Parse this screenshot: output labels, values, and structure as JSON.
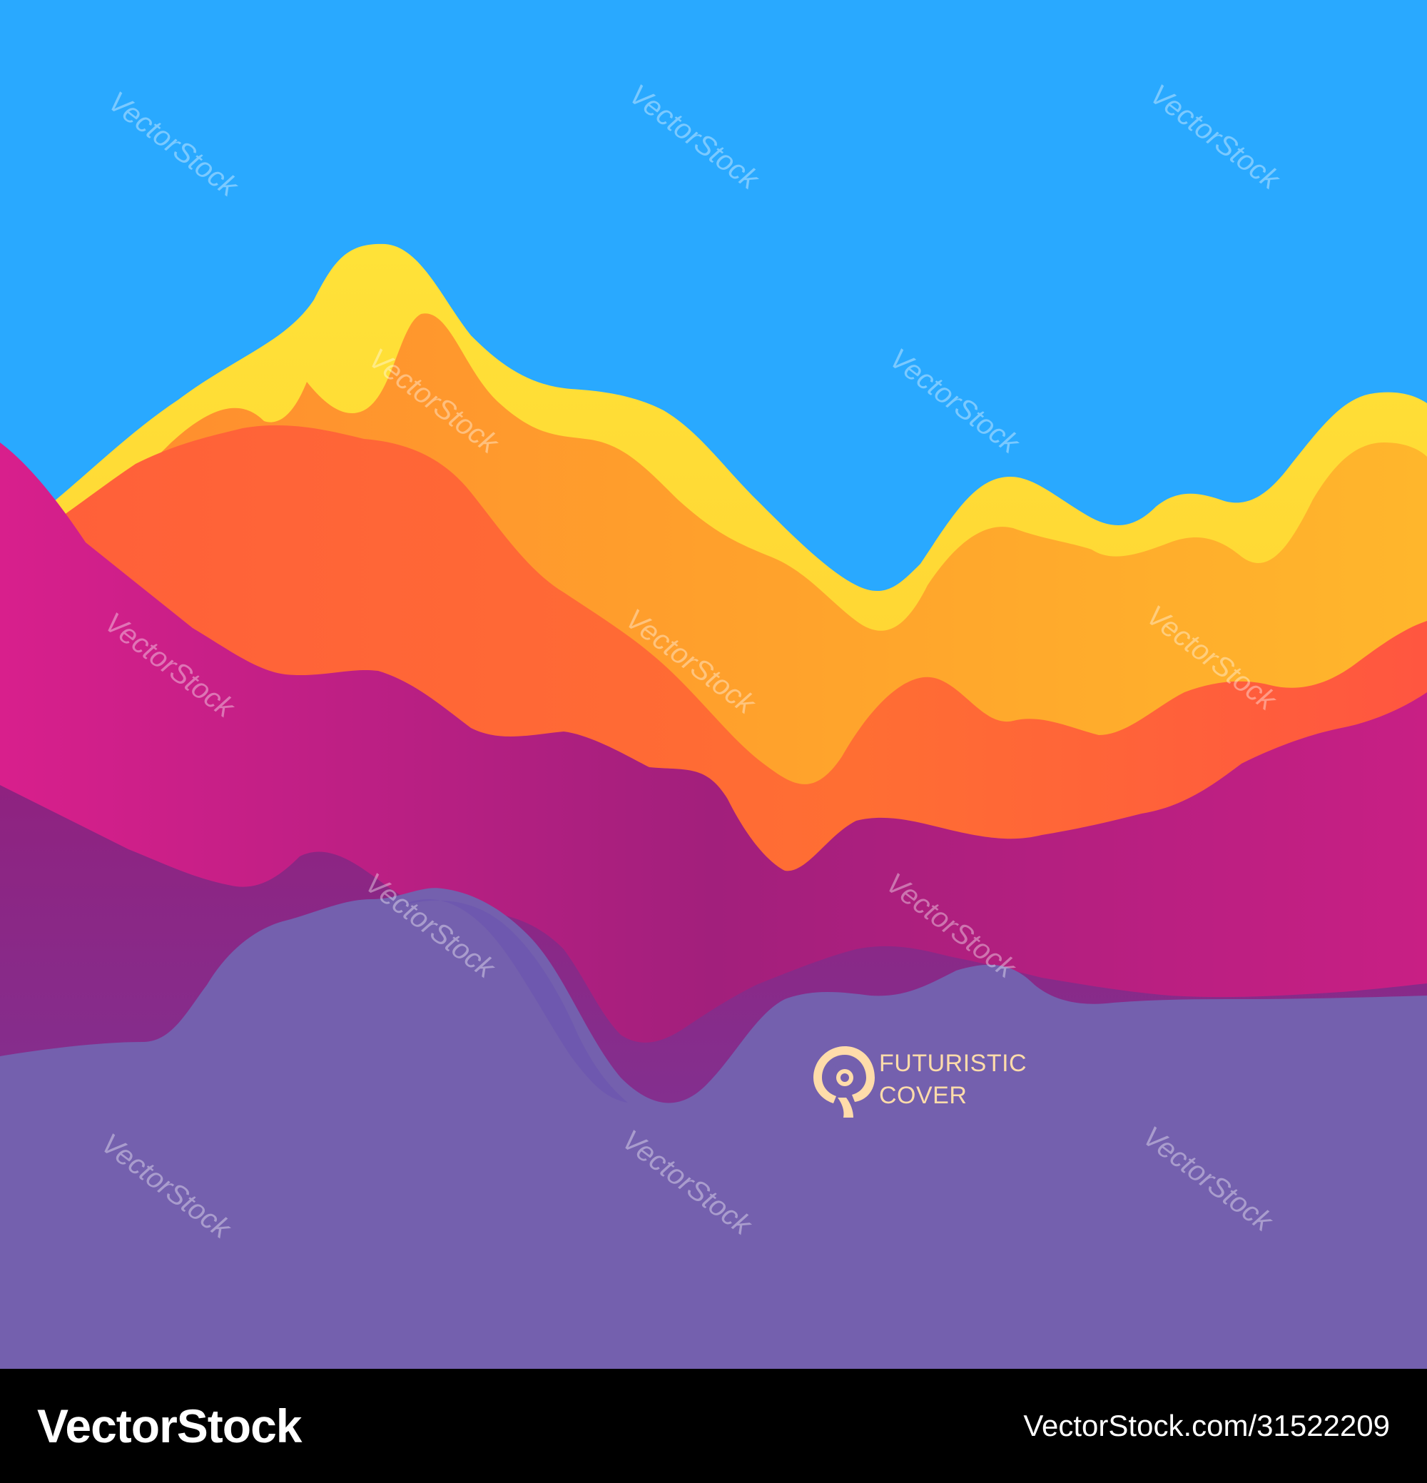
{
  "colors": {
    "sky": "#29a9ff",
    "ground": "#7460ae",
    "yellow": "#ffdc30",
    "orange": "#ffa32b",
    "red_orange": "#ff6a33",
    "magenta": "#c0207e",
    "purple": "#952178",
    "text_cream": "#ffdcaa",
    "footer_bg": "#000000",
    "footer_text": "#ffffff"
  },
  "cover": {
    "logo_icon": "nautilus-spiral-icon",
    "line1": "FUTURISTIC",
    "line2": "COVER"
  },
  "watermark": {
    "text": "VectorStock"
  },
  "footer": {
    "logo_text": "VectorStock",
    "url": "VectorStock.com/31522209"
  }
}
